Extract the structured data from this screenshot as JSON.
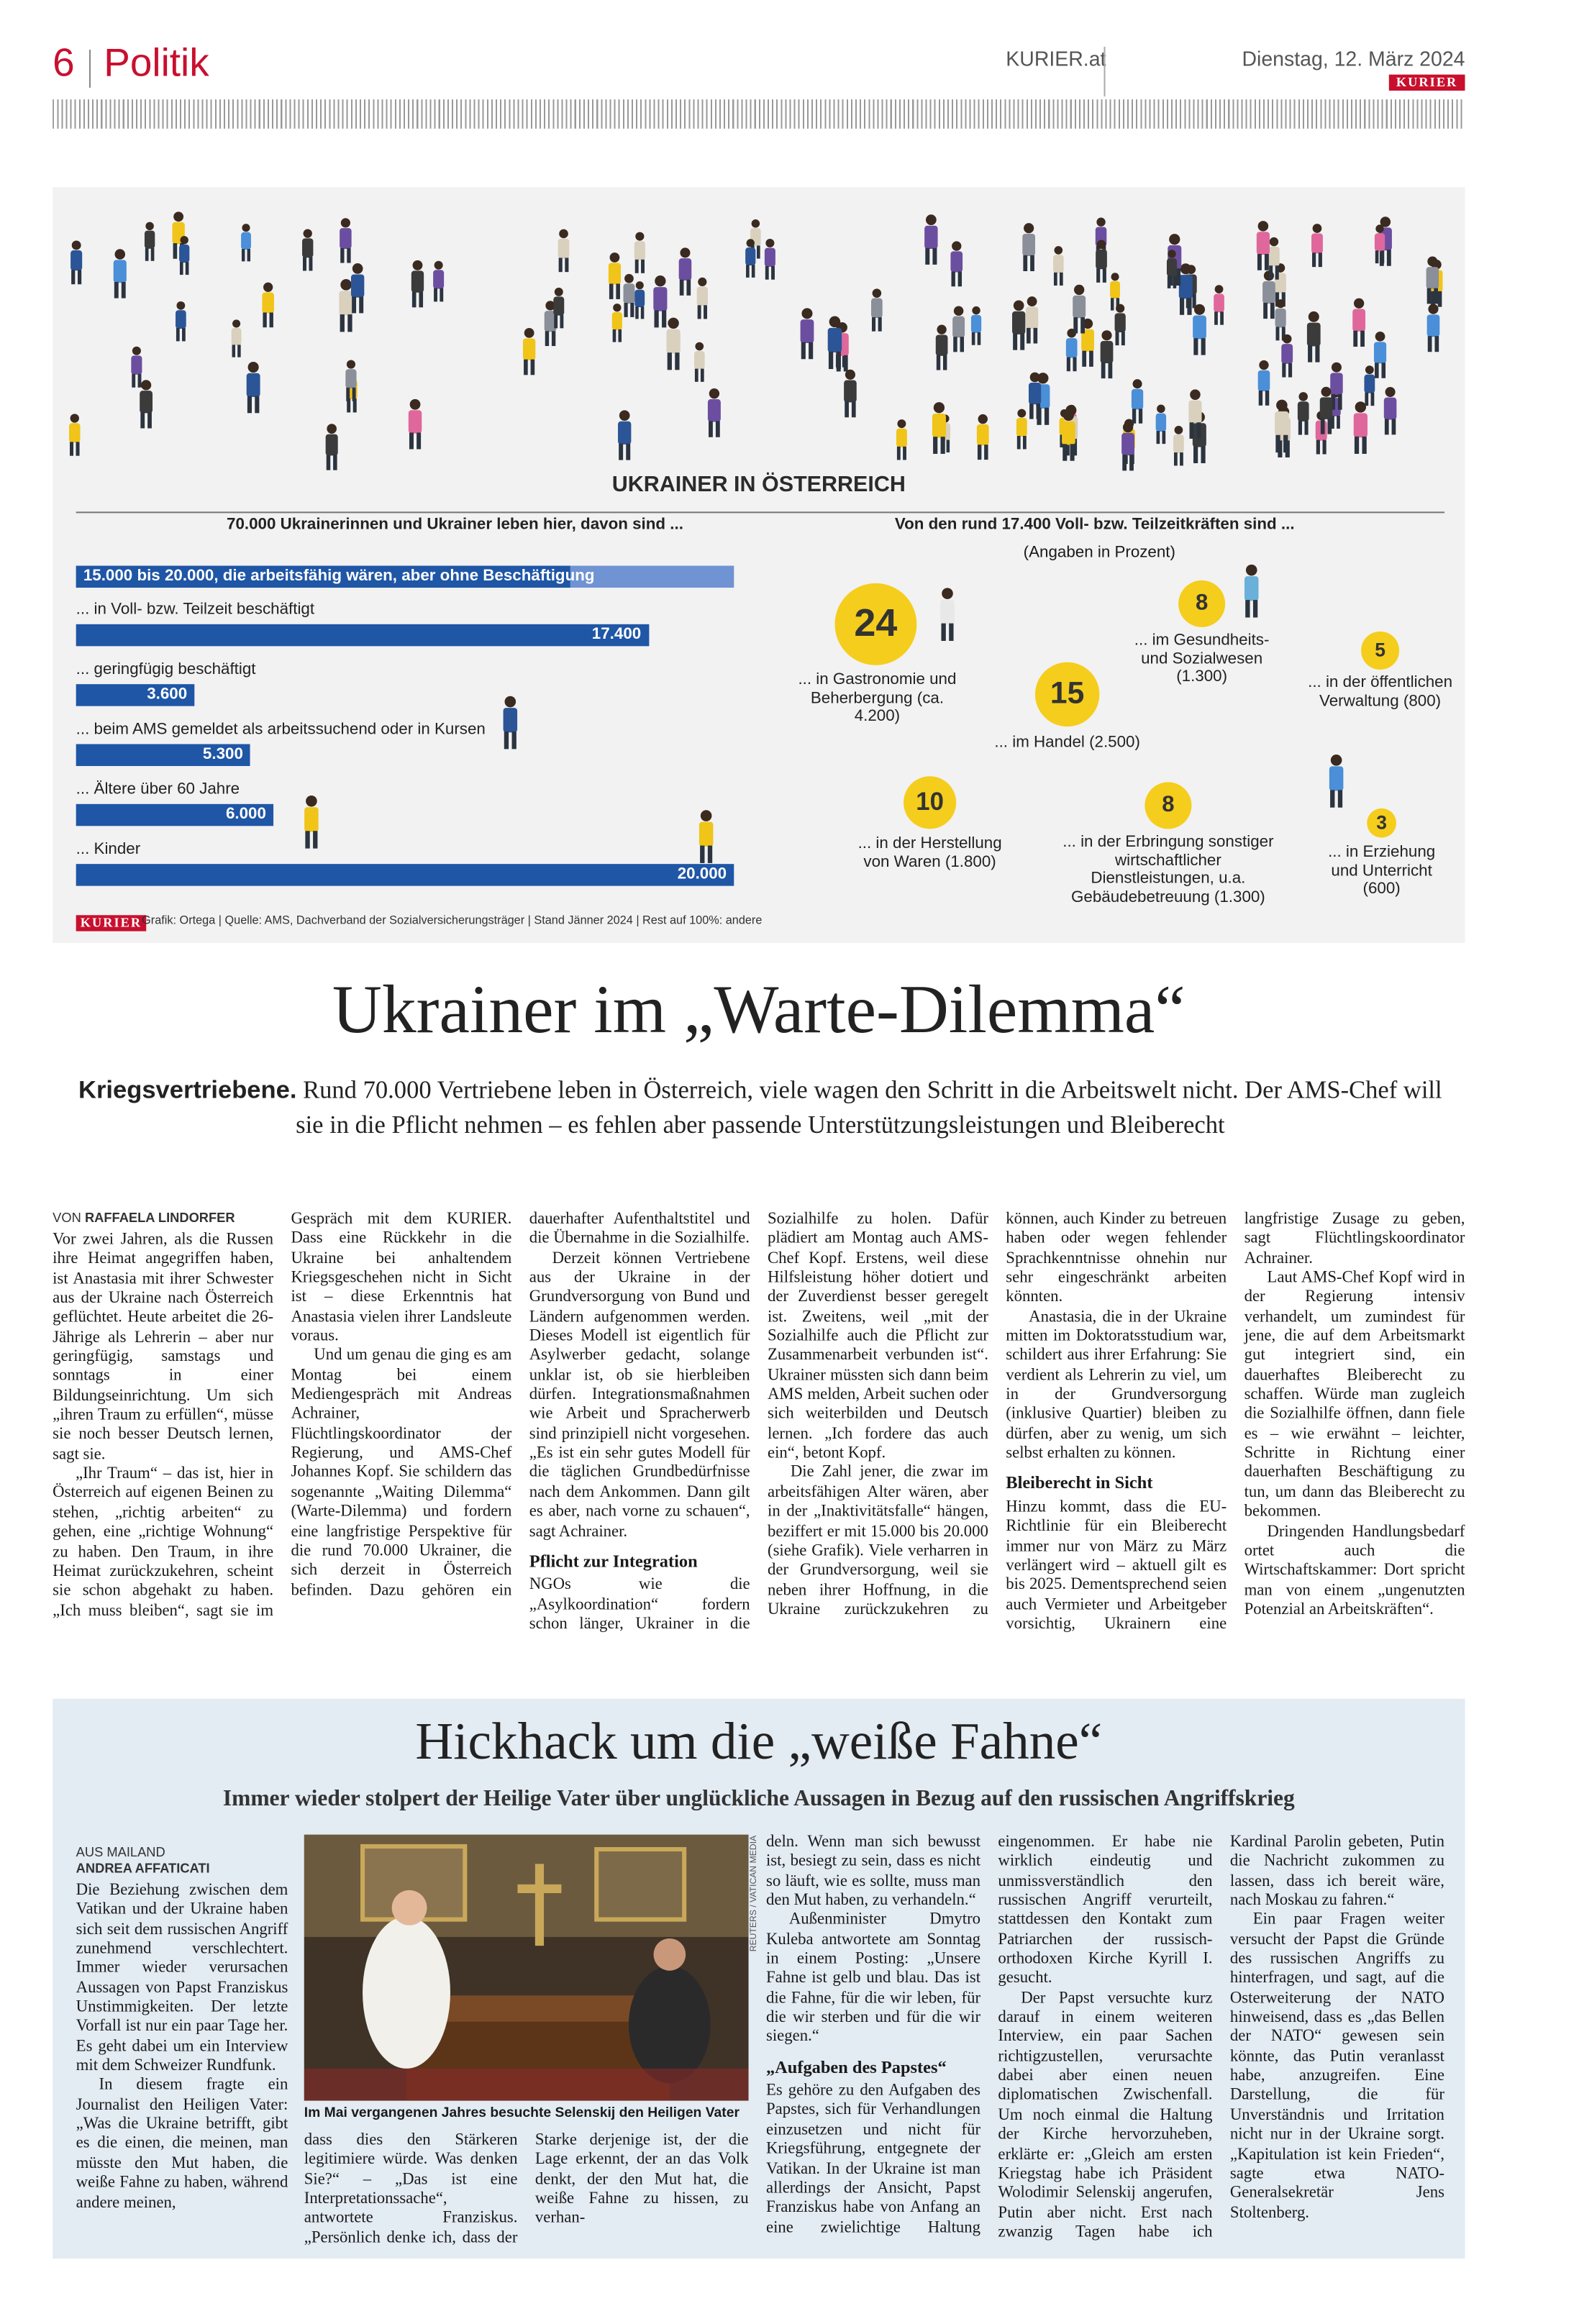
{
  "header": {
    "page": "6",
    "section": "Politik",
    "site": "KURIER.at",
    "date": "Dienstag, 12. März 2024",
    "logo": "KURIER"
  },
  "infographic": {
    "title": "UKRAINER IN ÖSTERREICH",
    "left_heading": "70.000 Ukrainerinnen und Ukrainer leben hier, davon sind ...",
    "range_bar": {
      "label": "15.000 bis 20.000, die arbeitsfähig wären, aber ohne Beschäftigung",
      "low": 15000,
      "high": 20000
    },
    "bars": [
      {
        "label": "... in Voll- bzw. Teilzeit beschäftigt",
        "value": 17400,
        "value_label": "17.400"
      },
      {
        "label": "... geringfügig beschäftigt",
        "value": 3600,
        "value_label": "3.600"
      },
      {
        "label": "... beim AMS gemeldet als arbeitssuchend oder in Kursen",
        "value": 5300,
        "value_label": "5.300"
      },
      {
        "label": "... Ältere über 60 Jahre",
        "value": 6000,
        "value_label": "6.000"
      },
      {
        "label": "... Kinder",
        "value": 20000,
        "value_label": "20.000"
      }
    ],
    "right_heading": "Von den rund 17.400 Voll- bzw. Teilzeitkräften sind ...",
    "unit_note": "(Angaben in Prozent)",
    "sectors": [
      {
        "value": 24,
        "label": "... in Gastronomie und Beherbergung (ca. 4.200)"
      },
      {
        "value": 15,
        "label": "... im Handel (2.500)"
      },
      {
        "value": 8,
        "label": "... im Gesundheits- und Sozialwesen (1.300)"
      },
      {
        "value": 5,
        "label": "... in der öffentlichen Verwaltung (800)"
      },
      {
        "value": 10,
        "label": "... in der Herstellung von Waren (1.800)"
      },
      {
        "value": 8,
        "label": "... in der Erbringung sonstiger wirtschaftlicher Dienstleistungen, u.a. Gebäudebetreuung (1.300)"
      },
      {
        "value": 3,
        "label": "... in Erziehung und Unterricht (600)"
      }
    ],
    "source_logo": "KURIER",
    "source": "Grafik: Ortega | Quelle: AMS, Dachverband der Sozialversicherungsträger | Stand Jänner 2024 | Rest auf 100%: andere"
  },
  "article1": {
    "headline": "Ukrainer im „Warte-Dilemma“",
    "deck_lead": "Kriegsvertriebene.",
    "deck": "Rund 70.000 Vertriebene leben in Österreich, viele wagen den Schritt in die Arbeitswelt nicht. Der AMS-Chef will sie in die Pflicht nehmen – es fehlen aber passende Unterstützungsleistungen und Bleiberecht",
    "byline_prefix": "VON",
    "byline": "RAFFAELA LINDORFER",
    "body": [
      {
        "text": "Vor zwei Jahren, als die Russen ihre Heimat angegriffen haben, ist Anastasia mit ihrer Schwester aus der Ukraine nach Österreich geflüchtet. Heute arbeitet die 26-Jährige als Lehrerin – aber nur geringfügig, samstags und sonntags in einer Bildungseinrichtung. Um sich „ihren Traum zu erfüllen“, müsse sie noch besser Deutsch lernen, sagt sie."
      },
      {
        "text": "„Ihr Traum“ – das ist, hier in Österreich auf eigenen Beinen zu stehen, „richtig arbeiten“ zu gehen, eine „richtige Wohnung“ zu haben. Den Traum, in ihre Heimat zurückzukehren, scheint sie schon abgehakt zu haben. „Ich muss bleiben“, sagt sie im Gespräch mit dem KURIER. Dass eine Rückkehr in die Ukraine bei anhaltendem Kriegsgeschehen nicht in Sicht ist – diese Erkenntnis hat Anastasia vielen ihrer Landsleute voraus."
      },
      {
        "text": "Und um genau die ging es am Montag bei einem Mediengespräch mit Andreas Achrainer, Flüchtlingskoordinator der Regierung, und AMS-Chef Johannes Kopf. Sie schildern das sogenannte „Waiting Dilemma“ (Warte-Dilemma) und fordern eine langfristige Perspektive für die rund 70.000 Ukrainer, die sich derzeit in Österreich befinden. Dazu gehören ein dauerhafter Aufenthaltstitel und die Übernahme in die Sozialhilfe."
      },
      {
        "text": "Derzeit können Vertriebene aus der Ukraine in der Grundversorgung von Bund und Ländern aufgenommen werden. Dieses Modell ist eigentlich für Asylwerber gedacht, solange unklar ist, ob sie hierbleiben dürfen. Integrationsmaßnahmen wie Arbeit und Spracherwerb sind prinzipiell nicht vorgesehen. „Es ist ein sehr gutes Modell für die täglichen Grundbedürfnisse nach dem Ankommen. Dann gilt es aber, nach vorne zu schauen“, sagt Achrainer."
      },
      {
        "subhead": "Pflicht zur Integration"
      },
      {
        "text": "NGOs wie die „Asylkoordination“ fordern schon länger, Ukrainer in die Sozialhilfe zu holen. Dafür plädiert am Montag auch AMS-Chef Kopf. Erstens, weil diese Hilfsleistung höher dotiert und der Zuverdienst besser geregelt ist. Zweitens, weil „mit der Sozialhilfe auch die Pflicht zur Zusammenarbeit verbunden ist“. Ukrainer müssten sich dann beim AMS melden, Arbeit suchen oder sich weiterbilden und Deutsch lernen. „Ich fordere das auch ein“, betont Kopf."
      },
      {
        "text": "Die Zahl jener, die zwar im arbeitsfähigen Alter wären, aber in der „Inaktivitätsfalle“ hängen, beziffert er mit 15.000 bis 20.000 (siehe Grafik). Viele verharren in der Grundversorgung, weil sie neben ihrer Hoffnung, in die Ukraine zurückzukehren zu können, auch Kinder zu betreuen haben oder wegen fehlender Sprachkenntnisse ohnehin nur sehr eingeschränkt arbeiten könnten."
      },
      {
        "text": "Anastasia, die in der Ukraine mitten im Doktoratsstudium war, schildert aus ihrer Erfahrung: Sie verdient als Lehrerin zu viel, um in der Grundversorgung (inklusive Quartier) bleiben zu dürfen, aber zu wenig, um sich selbst erhalten zu können."
      },
      {
        "subhead": "Bleiberecht in Sicht"
      },
      {
        "text": "Hinzu kommt, dass die EU-Richtlinie für ein Bleiberecht immer nur von März zu März verlängert wird – aktuell gilt es bis 2025. Dementsprechend seien auch Vermieter und Arbeitgeber vorsichtig, Ukrainern eine langfristige Zusage zu geben, sagt Flüchtlingskoordinator Achrainer."
      },
      {
        "text": "Laut AMS-Chef Kopf wird in der Regierung intensiv verhandelt, um zumindest für jene, die auf dem Arbeitsmarkt gut integriert sind, ein dauerhaftes Bleiberecht zu schaffen. Würde man zugleich die Sozialhilfe öffnen, dann fiele es – wie erwähnt – leichter, Schritte in Richtung einer dauerhaften Beschäftigung zu tun, um dann das Bleiberecht zu bekommen."
      },
      {
        "text": "Dringenden Handlungsbedarf ortet auch die Wirtschaftskammer: Dort spricht man von einem „ungenutzten Potenzial an Arbeitskräften“."
      }
    ]
  },
  "article2": {
    "headline": "Hickhack um die „weiße Fahne“",
    "deck": "Immer wieder stolpert der Heilige Vater über unglückliche Aussagen in Bezug auf den russischen Angriffskrieg",
    "byline_prefix": "AUS MAILAND",
    "byline": "ANDREA AFFATICATI",
    "photo_credit": "REUTERS / VATICAN MEDIA",
    "caption": "Im Mai vergangenen Jahres besuchte Selenskij den Heiligen Vater",
    "col1": [
      {
        "text": "Die Beziehung zwischen dem Vatikan und der Ukraine haben sich seit dem russischen Angriff zunehmend verschlechtert. Immer wieder verursachen Aussagen von Papst Franziskus Unstimmigkeiten. Der letzte Vorfall ist nur ein paar Tage her. Es geht dabei um ein Interview mit dem Schweizer Rundfunk."
      },
      {
        "text": "In diesem fragte ein Journalist den Heiligen Vater: „Was die Ukraine betrifft, gibt es die einen, die meinen, man müsste den Mut haben, die weiße Fahne zu haben, während andere meinen,"
      }
    ],
    "under_photo": [
      {
        "text": "dass dies den Stärkeren legitimiere würde. Was denken Sie?“ – „Das ist eine Interpretationssache“, antwortete Franziskus. „Persönlich denke ich, dass der Starke derjenige ist, der die Lage erkennt, der an das Volk denkt, der den Mut hat, die weiße Fahne zu hissen, zu verhan-"
      }
    ],
    "right": [
      {
        "text": "deln. Wenn man sich bewusst ist, besiegt zu sein, dass es nicht so läuft, wie es sollte, muss man den Mut haben, zu verhandeln.“"
      },
      {
        "text": "Außenminister Dmytro Kuleba antwortete am Sonntag in einem Posting: „Unsere Fahne ist gelb und blau. Das ist die Fahne, für die wir leben, für die wir sterben und für die wir siegen.“"
      },
      {
        "subhead": "„Aufgaben des Papstes“"
      },
      {
        "text": "Es gehöre zu den Aufgaben des Papstes, sich für Verhandlungen einzusetzen und nicht für Kriegsführung, entgegnete der Vatikan. In der Ukraine ist man allerdings der Ansicht, Papst Franziskus habe von Anfang an eine zwielichtige Haltung eingenommen. Er habe nie wirklich eindeutig und unmissverständlich den russischen Angriff verurteilt, stattdessen den Kontakt zum Patriarchen der russisch-orthodoxen Kirche Kyrill I. gesucht."
      },
      {
        "text": "Der Papst versuchte kurz darauf in einem weiteren Interview, ein paar Sachen richtigzustellen, verursachte dabei aber einen neuen diplomatischen Zwischenfall. Um noch einmal die Haltung der Kirche hervorzuheben, erklärte er: „Gleich am ersten Kriegstag habe ich Präsident Wolodimir Selenskij angerufen, Putin aber nicht. Erst nach zwanzig Tagen habe ich Kardinal Parolin gebeten, Putin die Nachricht zukommen zu lassen, dass ich bereit wäre, nach Moskau zu fahren.“"
      },
      {
        "text": "Ein paar Fragen weiter versucht der Papst die Gründe des russischen Angriffs zu hinterfragen, und sagt, auf die Osterweiterung der NATO hinweisend, dass es „das Bellen der NATO“ gewesen sein könnte, das Putin veranlasst habe, anzugreifen. Eine Darstellung, die für Unverständnis und Irritation nicht nur in der Ukraine sorgt. „Kapitulation ist kein Frieden“, sagte etwa NATO-Generalsekretär Jens Stoltenberg."
      }
    ]
  }
}
